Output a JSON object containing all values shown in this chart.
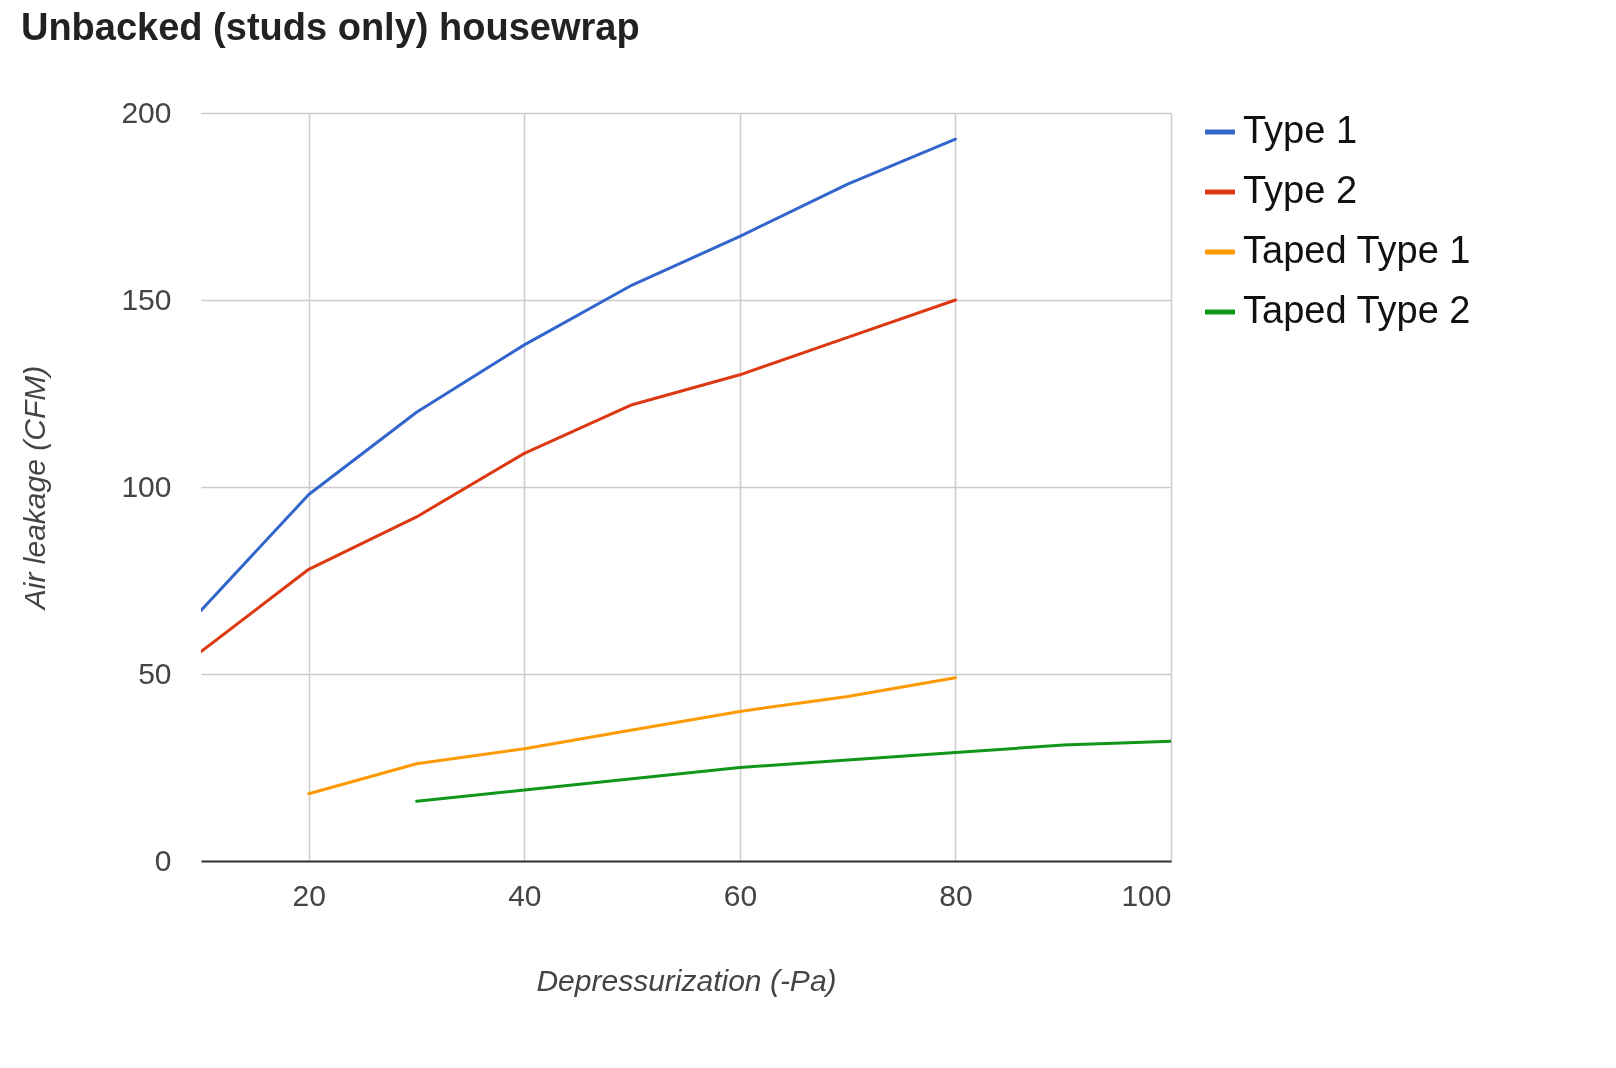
{
  "chart_data": {
    "type": "line",
    "title": "Unbacked (studs only) housewrap",
    "xlabel": "Depressurization (-Pa)",
    "ylabel": "Air leakage (CFM)",
    "xlim": [
      10,
      100
    ],
    "xticks": [
      20,
      40,
      60,
      80,
      100
    ],
    "ylim": [
      0,
      200
    ],
    "yticks": [
      0,
      50,
      100,
      150,
      200
    ],
    "grid": true,
    "legend": "right",
    "series": [
      {
        "name": "Type 1",
        "color": "#3366cc",
        "x": [
          10,
          20,
          30,
          40,
          50,
          60,
          70,
          80
        ],
        "values": [
          67,
          98,
          120,
          138,
          154,
          167,
          181,
          193
        ]
      },
      {
        "name": "Type 2",
        "color": "#dc3912",
        "x": [
          10,
          20,
          30,
          40,
          50,
          60,
          70,
          80
        ],
        "values": [
          56,
          78,
          92,
          109,
          122,
          130,
          140,
          150
        ]
      },
      {
        "name": "Taped Type 1",
        "color": "#ff9900",
        "x": [
          20,
          30,
          40,
          50,
          60,
          70,
          80
        ],
        "values": [
          18,
          26,
          30,
          35,
          40,
          44,
          49
        ]
      },
      {
        "name": "Taped Type 2",
        "color": "#109618",
        "x": [
          30,
          40,
          50,
          60,
          70,
          80,
          90,
          100
        ],
        "values": [
          16,
          19,
          22,
          25,
          27,
          29,
          31,
          32
        ]
      }
    ]
  }
}
